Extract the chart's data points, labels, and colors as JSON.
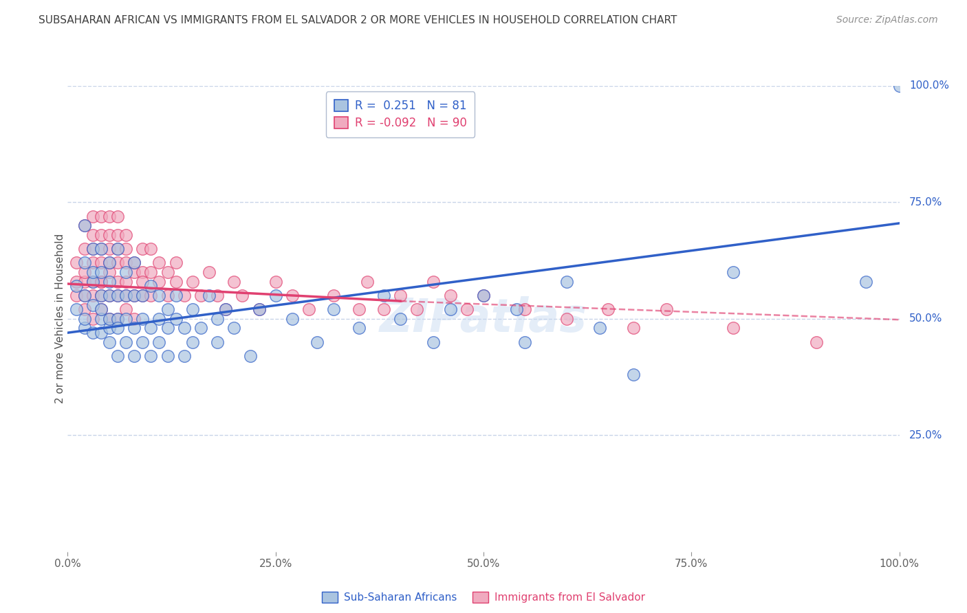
{
  "title": "SUBSAHARAN AFRICAN VS IMMIGRANTS FROM EL SALVADOR 2 OR MORE VEHICLES IN HOUSEHOLD CORRELATION CHART",
  "source": "Source: ZipAtlas.com",
  "ylabel": "2 or more Vehicles in Household",
  "blue_label": "Sub-Saharan Africans",
  "pink_label": "Immigrants from El Salvador",
  "blue_r": 0.251,
  "blue_n": 81,
  "pink_r": -0.092,
  "pink_n": 90,
  "blue_color": "#aac4e0",
  "pink_color": "#f0aabf",
  "blue_line_color": "#3060c8",
  "pink_line_color": "#e04070",
  "bg_color": "#ffffff",
  "grid_color": "#c8d4e8",
  "watermark": "ZIPatlas",
  "blue_scatter_x": [
    0.01,
    0.01,
    0.02,
    0.02,
    0.02,
    0.02,
    0.02,
    0.03,
    0.03,
    0.03,
    0.03,
    0.03,
    0.04,
    0.04,
    0.04,
    0.04,
    0.04,
    0.04,
    0.05,
    0.05,
    0.05,
    0.05,
    0.05,
    0.05,
    0.06,
    0.06,
    0.06,
    0.06,
    0.06,
    0.07,
    0.07,
    0.07,
    0.07,
    0.08,
    0.08,
    0.08,
    0.08,
    0.09,
    0.09,
    0.09,
    0.1,
    0.1,
    0.1,
    0.11,
    0.11,
    0.11,
    0.12,
    0.12,
    0.12,
    0.13,
    0.13,
    0.14,
    0.14,
    0.15,
    0.15,
    0.16,
    0.17,
    0.18,
    0.18,
    0.19,
    0.2,
    0.22,
    0.23,
    0.25,
    0.27,
    0.3,
    0.32,
    0.35,
    0.38,
    0.4,
    0.44,
    0.46,
    0.5,
    0.54,
    0.55,
    0.6,
    0.64,
    0.68,
    0.8,
    0.96,
    1.0
  ],
  "blue_scatter_y": [
    0.57,
    0.52,
    0.62,
    0.55,
    0.48,
    0.7,
    0.5,
    0.58,
    0.53,
    0.65,
    0.47,
    0.6,
    0.55,
    0.5,
    0.65,
    0.47,
    0.6,
    0.52,
    0.55,
    0.48,
    0.62,
    0.5,
    0.58,
    0.45,
    0.55,
    0.5,
    0.65,
    0.48,
    0.42,
    0.55,
    0.5,
    0.6,
    0.45,
    0.55,
    0.48,
    0.42,
    0.62,
    0.55,
    0.5,
    0.45,
    0.57,
    0.48,
    0.42,
    0.55,
    0.5,
    0.45,
    0.52,
    0.48,
    0.42,
    0.55,
    0.5,
    0.48,
    0.42,
    0.52,
    0.45,
    0.48,
    0.55,
    0.5,
    0.45,
    0.52,
    0.48,
    0.42,
    0.52,
    0.55,
    0.5,
    0.45,
    0.52,
    0.48,
    0.55,
    0.5,
    0.45,
    0.52,
    0.55,
    0.52,
    0.45,
    0.58,
    0.48,
    0.38,
    0.6,
    0.58,
    1.0
  ],
  "pink_scatter_x": [
    0.01,
    0.01,
    0.01,
    0.02,
    0.02,
    0.02,
    0.02,
    0.02,
    0.02,
    0.03,
    0.03,
    0.03,
    0.03,
    0.03,
    0.03,
    0.03,
    0.04,
    0.04,
    0.04,
    0.04,
    0.04,
    0.04,
    0.04,
    0.04,
    0.05,
    0.05,
    0.05,
    0.05,
    0.05,
    0.05,
    0.05,
    0.06,
    0.06,
    0.06,
    0.06,
    0.06,
    0.06,
    0.06,
    0.07,
    0.07,
    0.07,
    0.07,
    0.07,
    0.07,
    0.08,
    0.08,
    0.08,
    0.08,
    0.09,
    0.09,
    0.09,
    0.09,
    0.1,
    0.1,
    0.1,
    0.11,
    0.11,
    0.12,
    0.12,
    0.13,
    0.13,
    0.14,
    0.15,
    0.16,
    0.17,
    0.18,
    0.19,
    0.2,
    0.21,
    0.23,
    0.25,
    0.27,
    0.29,
    0.32,
    0.35,
    0.36,
    0.38,
    0.4,
    0.42,
    0.44,
    0.46,
    0.48,
    0.5,
    0.55,
    0.6,
    0.65,
    0.68,
    0.72,
    0.8,
    0.9
  ],
  "pink_scatter_y": [
    0.58,
    0.62,
    0.55,
    0.65,
    0.58,
    0.52,
    0.7,
    0.6,
    0.55,
    0.68,
    0.62,
    0.58,
    0.72,
    0.55,
    0.65,
    0.5,
    0.65,
    0.58,
    0.72,
    0.62,
    0.55,
    0.68,
    0.58,
    0.52,
    0.65,
    0.6,
    0.55,
    0.68,
    0.62,
    0.5,
    0.72,
    0.65,
    0.58,
    0.72,
    0.55,
    0.62,
    0.5,
    0.68,
    0.62,
    0.55,
    0.68,
    0.58,
    0.52,
    0.65,
    0.6,
    0.55,
    0.62,
    0.5,
    0.6,
    0.55,
    0.65,
    0.58,
    0.6,
    0.55,
    0.65,
    0.58,
    0.62,
    0.55,
    0.6,
    0.58,
    0.62,
    0.55,
    0.58,
    0.55,
    0.6,
    0.55,
    0.52,
    0.58,
    0.55,
    0.52,
    0.58,
    0.55,
    0.52,
    0.55,
    0.52,
    0.58,
    0.52,
    0.55,
    0.52,
    0.58,
    0.55,
    0.52,
    0.55,
    0.52,
    0.5,
    0.52,
    0.48,
    0.52,
    0.48,
    0.45
  ]
}
